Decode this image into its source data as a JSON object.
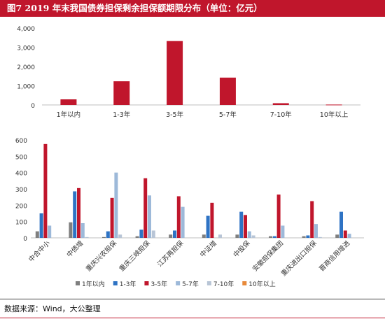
{
  "header": {
    "title": "图7   2019 年末我国债券担保剩余担保额期限分布（单位：亿元）"
  },
  "source": "数据来源：Wind，大公整理",
  "colors": {
    "title_bg": "#c0162c",
    "bar_top": "#c0162c"
  },
  "chart_data": [
    {
      "type": "bar",
      "categories": [
        "1年以内",
        "1-3年",
        "3-5年",
        "5-7年",
        "7-10年",
        "10年以上"
      ],
      "values": [
        290,
        1230,
        3320,
        1420,
        90,
        20
      ],
      "ylim": [
        0,
        4000
      ],
      "yticks": [
        0,
        1000,
        2000,
        3000,
        4000
      ],
      "ytick_labels": [
        "0",
        "1,000",
        "2,000",
        "3,000",
        "4,000"
      ],
      "color": "#c0162c",
      "grid": false
    },
    {
      "type": "bar",
      "categories": [
        "中合中小",
        "中债增",
        "重庆兴农担保",
        "重庆三峡担保",
        "江苏再担保",
        "中证增",
        "中投保",
        "安徽担保集团",
        "重庆进出口担保",
        "晋商信用增进"
      ],
      "ylim": [
        0,
        600
      ],
      "yticks": [
        0,
        100,
        200,
        300,
        400,
        500,
        600
      ],
      "legend_position": "bottom",
      "grid": false,
      "series": [
        {
          "name": "1年以内",
          "color": "#7f7f7f",
          "values": [
            40,
            95,
            5,
            10,
            20,
            20,
            20,
            10,
            10,
            20
          ]
        },
        {
          "name": "1-3年",
          "color": "#2e73c4",
          "values": [
            150,
            285,
            40,
            50,
            45,
            135,
            160,
            10,
            15,
            160
          ]
        },
        {
          "name": "3-5年",
          "color": "#c0162c",
          "values": [
            575,
            305,
            245,
            365,
            255,
            215,
            140,
            265,
            225,
            45
          ]
        },
        {
          "name": "5-7年",
          "color": "#9db9d9",
          "values": [
            75,
            90,
            400,
            260,
            190,
            0,
            40,
            75,
            85,
            25
          ]
        },
        {
          "name": "7-10年",
          "color": "#b8c5d6",
          "values": [
            0,
            5,
            20,
            45,
            0,
            20,
            15,
            0,
            5,
            0
          ]
        },
        {
          "name": "10年以上",
          "color": "#e88a3a",
          "values": [
            0,
            0,
            0,
            0,
            0,
            0,
            0,
            0,
            0,
            0
          ]
        }
      ]
    }
  ]
}
